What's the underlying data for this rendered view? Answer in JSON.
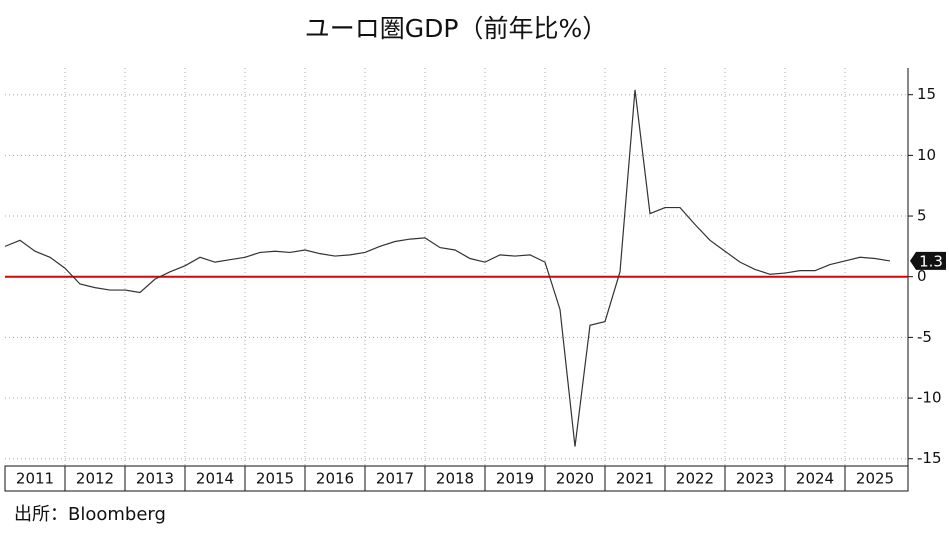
{
  "chart_data": {
    "type": "line",
    "title": "ユーロ圏GDP（前年比%）",
    "source": "出所：Bloomberg",
    "x": [
      2011,
      2011.25,
      2011.5,
      2011.75,
      2012,
      2012.25,
      2012.5,
      2012.75,
      2013,
      2013.25,
      2013.5,
      2013.75,
      2014,
      2014.25,
      2014.5,
      2014.75,
      2015,
      2015.25,
      2015.5,
      2015.75,
      2016,
      2016.25,
      2016.5,
      2016.75,
      2017,
      2017.25,
      2017.5,
      2017.75,
      2018,
      2018.25,
      2018.5,
      2018.75,
      2019,
      2019.25,
      2019.5,
      2019.75,
      2020,
      2020.25,
      2020.5,
      2020.75,
      2021,
      2021.25,
      2021.5,
      2021.75,
      2022,
      2022.25,
      2022.5,
      2022.75,
      2023,
      2023.25,
      2023.5,
      2023.75,
      2024,
      2024.25,
      2024.5,
      2024.75,
      2025,
      2025.25,
      2025.5,
      2025.75
    ],
    "series": [
      {
        "color": "#333333",
        "values": [
          2.5,
          3.0,
          2.1,
          1.6,
          0.7,
          -0.6,
          -0.9,
          -1.1,
          -1.1,
          -1.3,
          -0.2,
          0.4,
          0.9,
          1.6,
          1.2,
          1.4,
          1.6,
          2.0,
          2.1,
          2.0,
          2.2,
          1.9,
          1.7,
          1.8,
          2.0,
          2.5,
          2.9,
          3.1,
          3.2,
          2.4,
          2.2,
          1.5,
          1.2,
          1.8,
          1.7,
          1.8,
          1.2,
          -2.7,
          -14.0,
          -4.0,
          -3.7,
          0.4,
          15.4,
          5.2,
          5.7,
          5.7,
          4.3,
          3.0,
          2.1,
          1.2,
          0.6,
          0.2,
          0.3,
          0.5,
          0.5,
          1.0,
          1.3,
          1.6,
          1.5,
          1.3
        ]
      }
    ],
    "xlim": [
      2011,
      2026
    ],
    "xticks": [
      2011,
      2012,
      2013,
      2014,
      2015,
      2016,
      2017,
      2018,
      2019,
      2020,
      2021,
      2022,
      2023,
      2024,
      2025
    ],
    "ylim": [
      -15.6,
      17.2
    ],
    "yticks": [
      15,
      10,
      5,
      0,
      -5,
      -10,
      -15
    ],
    "grid": true,
    "reference_line": {
      "value": 0,
      "color": "#e00000"
    }
  }
}
